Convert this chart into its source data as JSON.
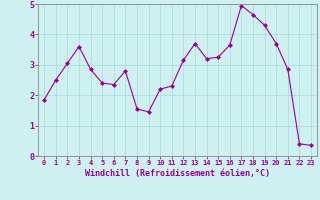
{
  "x": [
    0,
    1,
    2,
    3,
    4,
    5,
    6,
    7,
    8,
    9,
    10,
    11,
    12,
    13,
    14,
    15,
    16,
    17,
    18,
    19,
    20,
    21,
    22,
    23
  ],
  "y": [
    1.85,
    2.5,
    3.05,
    3.6,
    2.85,
    2.4,
    2.35,
    2.8,
    1.55,
    1.45,
    2.2,
    2.3,
    3.15,
    3.7,
    3.2,
    3.25,
    3.65,
    4.95,
    4.65,
    4.3,
    3.7,
    2.85,
    0.4,
    0.35
  ],
  "line_color": "#990099",
  "marker": "D",
  "marker_size": 2.0,
  "bg_color": "#cff0f0",
  "grid_color": "#aadddd",
  "xlabel": "Windchill (Refroidissement éolien,°C)",
  "xlabel_color": "#990099",
  "tick_color": "#990099",
  "axis_color": "#888888",
  "ylim": [
    0,
    5
  ],
  "xlim": [
    -0.5,
    23.5
  ],
  "yticks": [
    0,
    1,
    2,
    3,
    4,
    5
  ],
  "xtick_fontsize": 5.0,
  "ytick_fontsize": 6.0,
  "xlabel_fontsize": 6.0
}
